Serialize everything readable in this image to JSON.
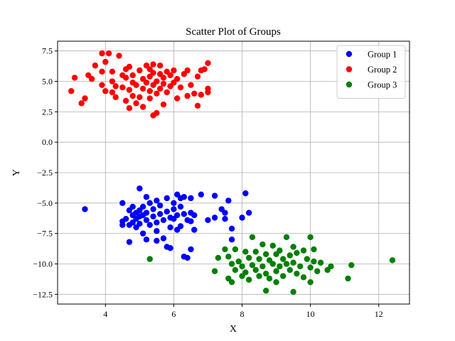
{
  "chart_data": {
    "type": "scatter",
    "title": "Scatter Plot of Groups",
    "xlabel": "X",
    "ylabel": "Y",
    "xlim": [
      2.6,
      12.9
    ],
    "ylim": [
      -13.3,
      8.3
    ],
    "xticks": [
      4,
      6,
      8,
      10,
      12
    ],
    "yticks": [
      7.5,
      5.0,
      2.5,
      0.0,
      -2.5,
      -5.0,
      -7.5,
      -10.0,
      -12.5
    ],
    "xtick_labels": [
      "4",
      "6",
      "8",
      "10",
      "12"
    ],
    "ytick_labels": [
      "7.5",
      "5.0",
      "2.5",
      "0.0",
      "−2.5",
      "−5.0",
      "−7.5",
      "−10.0",
      "−12.5"
    ],
    "grid": true,
    "legend_position": "top-right",
    "series": [
      {
        "name": "Group 1",
        "color": "#0000ff",
        "points": [
          [
            3.4,
            -5.5
          ],
          [
            4.5,
            -5.0
          ],
          [
            4.5,
            -6.5
          ],
          [
            4.5,
            -6.8
          ],
          [
            4.6,
            -6.3
          ],
          [
            4.7,
            -5.6
          ],
          [
            4.7,
            -6.8
          ],
          [
            4.7,
            -8.2
          ],
          [
            4.8,
            -5.3
          ],
          [
            4.8,
            -6.0
          ],
          [
            4.8,
            -6.6
          ],
          [
            4.9,
            -5.8
          ],
          [
            4.9,
            -6.3
          ],
          [
            4.9,
            -7.0
          ],
          [
            5.0,
            -3.8
          ],
          [
            5.0,
            -5.6
          ],
          [
            5.0,
            -6.1
          ],
          [
            5.0,
            -6.7
          ],
          [
            5.1,
            -5.3
          ],
          [
            5.1,
            -6.0
          ],
          [
            5.1,
            -7.5
          ],
          [
            5.2,
            -4.5
          ],
          [
            5.2,
            -5.8
          ],
          [
            5.2,
            -6.4
          ],
          [
            5.2,
            -8.0
          ],
          [
            5.3,
            -5.0
          ],
          [
            5.3,
            -6.8
          ],
          [
            5.4,
            -5.5
          ],
          [
            5.4,
            -6.1
          ],
          [
            5.5,
            -4.8
          ],
          [
            5.5,
            -6.6
          ],
          [
            5.5,
            -7.3
          ],
          [
            5.5,
            -8.1
          ],
          [
            5.6,
            -5.2
          ],
          [
            5.6,
            -5.9
          ],
          [
            5.7,
            -6.4
          ],
          [
            5.7,
            -7.9
          ],
          [
            5.8,
            -4.6
          ],
          [
            5.8,
            -5.7
          ],
          [
            5.8,
            -8.6
          ],
          [
            5.9,
            -6.2
          ],
          [
            5.9,
            -7.0
          ],
          [
            5.9,
            -8.7
          ],
          [
            6.0,
            -5.0
          ],
          [
            6.0,
            -5.5
          ],
          [
            6.0,
            -6.3
          ],
          [
            6.1,
            -4.3
          ],
          [
            6.1,
            -6.0
          ],
          [
            6.1,
            -7.2
          ],
          [
            6.2,
            -4.6
          ],
          [
            6.2,
            -5.3
          ],
          [
            6.2,
            -6.9
          ],
          [
            6.3,
            -4.5
          ],
          [
            6.3,
            -5.9
          ],
          [
            6.3,
            -9.4
          ],
          [
            6.4,
            -6.4
          ],
          [
            6.4,
            -9.5
          ],
          [
            6.5,
            -4.6
          ],
          [
            6.5,
            -5.8
          ],
          [
            6.5,
            -6.5
          ],
          [
            6.5,
            -8.8
          ],
          [
            6.6,
            -6.0
          ],
          [
            6.6,
            -7.2
          ],
          [
            6.8,
            -4.3
          ],
          [
            7.0,
            -6.4
          ],
          [
            7.2,
            -4.4
          ],
          [
            7.2,
            -6.2
          ],
          [
            7.4,
            -5.5
          ],
          [
            7.5,
            -5.8
          ],
          [
            7.5,
            -6.3
          ],
          [
            7.6,
            -4.8
          ],
          [
            7.7,
            -7.1
          ],
          [
            7.7,
            -8.0
          ],
          [
            8.0,
            -6.2
          ],
          [
            8.1,
            -4.2
          ],
          [
            8.2,
            -5.8
          ]
        ]
      },
      {
        "name": "Group 2",
        "color": "#ff0000",
        "points": [
          [
            3.0,
            4.2
          ],
          [
            3.1,
            5.3
          ],
          [
            3.3,
            3.2
          ],
          [
            3.4,
            3.6
          ],
          [
            3.5,
            5.5
          ],
          [
            3.6,
            5.2
          ],
          [
            3.7,
            6.3
          ],
          [
            3.9,
            4.7
          ],
          [
            3.9,
            5.8
          ],
          [
            3.9,
            7.3
          ],
          [
            4.0,
            4.2
          ],
          [
            4.0,
            6.6
          ],
          [
            4.1,
            7.3
          ],
          [
            4.2,
            4.1
          ],
          [
            4.2,
            5.0
          ],
          [
            4.2,
            5.8
          ],
          [
            4.3,
            3.7
          ],
          [
            4.3,
            4.6
          ],
          [
            4.4,
            7.1
          ],
          [
            4.5,
            4.5
          ],
          [
            4.5,
            5.5
          ],
          [
            4.6,
            3.4
          ],
          [
            4.6,
            5.3
          ],
          [
            4.6,
            6.0
          ],
          [
            4.7,
            2.8
          ],
          [
            4.7,
            4.3
          ],
          [
            4.7,
            6.2
          ],
          [
            4.8,
            3.8
          ],
          [
            4.8,
            4.9
          ],
          [
            4.8,
            5.5
          ],
          [
            4.9,
            3.2
          ],
          [
            4.9,
            4.7
          ],
          [
            5.0,
            3.7
          ],
          [
            5.0,
            5.9
          ],
          [
            5.1,
            2.9
          ],
          [
            5.1,
            4.4
          ],
          [
            5.1,
            5.2
          ],
          [
            5.2,
            6.3
          ],
          [
            5.2,
            4.9
          ],
          [
            5.3,
            3.6
          ],
          [
            5.3,
            4.2
          ],
          [
            5.3,
            5.4
          ],
          [
            5.3,
            6.0
          ],
          [
            5.4,
            2.2
          ],
          [
            5.4,
            4.7
          ],
          [
            5.4,
            5.7
          ],
          [
            5.4,
            6.4
          ],
          [
            5.5,
            2.4
          ],
          [
            5.5,
            4.0
          ],
          [
            5.5,
            5.0
          ],
          [
            5.6,
            4.4
          ],
          [
            5.6,
            5.6
          ],
          [
            5.6,
            6.3
          ],
          [
            5.7,
            3.1
          ],
          [
            5.7,
            4.8
          ],
          [
            5.7,
            5.3
          ],
          [
            5.8,
            4.1
          ],
          [
            5.8,
            5.8
          ],
          [
            5.9,
            4.6
          ],
          [
            5.9,
            5.5
          ],
          [
            6.0,
            4.9
          ],
          [
            6.0,
            5.9
          ],
          [
            6.1,
            3.6
          ],
          [
            6.1,
            5.2
          ],
          [
            6.2,
            4.5
          ],
          [
            6.3,
            5.6
          ],
          [
            6.4,
            3.8
          ],
          [
            6.4,
            5.9
          ],
          [
            6.5,
            4.7
          ],
          [
            6.6,
            4.0
          ],
          [
            6.7,
            3.0
          ],
          [
            6.7,
            5.4
          ],
          [
            6.8,
            3.9
          ],
          [
            6.8,
            5.9
          ],
          [
            6.9,
            6.0
          ],
          [
            7.0,
            4.1
          ],
          [
            7.0,
            4.4
          ],
          [
            7.0,
            6.5
          ]
        ]
      },
      {
        "name": "Group 3",
        "color": "#008000",
        "points": [
          [
            5.3,
            -9.6
          ],
          [
            7.2,
            -10.6
          ],
          [
            7.3,
            -9.5
          ],
          [
            7.5,
            -8.8
          ],
          [
            7.6,
            -11.2
          ],
          [
            7.6,
            -9.4
          ],
          [
            7.7,
            -10.0
          ],
          [
            7.7,
            -11.5
          ],
          [
            7.8,
            -8.8
          ],
          [
            7.8,
            -10.5
          ],
          [
            7.9,
            -9.8
          ],
          [
            8.0,
            -10.2
          ],
          [
            8.0,
            -11.0
          ],
          [
            8.1,
            -9.0
          ],
          [
            8.1,
            -10.7
          ],
          [
            8.2,
            -9.5
          ],
          [
            8.2,
            -11.3
          ],
          [
            8.3,
            -7.8
          ],
          [
            8.3,
            -10.1
          ],
          [
            8.4,
            -9.0
          ],
          [
            8.4,
            -10.5
          ],
          [
            8.5,
            -9.6
          ],
          [
            8.5,
            -11.0
          ],
          [
            8.6,
            -8.4
          ],
          [
            8.6,
            -10.2
          ],
          [
            8.7,
            -9.2
          ],
          [
            8.7,
            -10.8
          ],
          [
            8.7,
            -12.2
          ],
          [
            8.8,
            -9.7
          ],
          [
            8.8,
            -11.2
          ],
          [
            8.9,
            -8.5
          ],
          [
            8.9,
            -10.0
          ],
          [
            9.0,
            -9.2
          ],
          [
            9.0,
            -10.6
          ],
          [
            9.0,
            -11.5
          ],
          [
            9.1,
            -8.9
          ],
          [
            9.1,
            -10.2
          ],
          [
            9.2,
            -9.6
          ],
          [
            9.2,
            -11.0
          ],
          [
            9.3,
            -7.8
          ],
          [
            9.3,
            -10.0
          ],
          [
            9.4,
            -9.3
          ],
          [
            9.4,
            -10.5
          ],
          [
            9.5,
            -8.6
          ],
          [
            9.5,
            -9.9
          ],
          [
            9.5,
            -12.3
          ],
          [
            9.6,
            -9.1
          ],
          [
            9.6,
            -10.8
          ],
          [
            9.7,
            -10.2
          ],
          [
            9.8,
            -8.9
          ],
          [
            9.8,
            -11.1
          ],
          [
            9.9,
            -9.6
          ],
          [
            10.0,
            -7.8
          ],
          [
            10.0,
            -10.3
          ],
          [
            10.0,
            -11.5
          ],
          [
            10.1,
            -8.8
          ],
          [
            10.1,
            -9.8
          ],
          [
            10.2,
            -10.6
          ],
          [
            10.3,
            -9.9
          ],
          [
            10.5,
            -10.5
          ],
          [
            10.6,
            -10.2
          ],
          [
            11.1,
            -11.2
          ],
          [
            11.2,
            -10.1
          ],
          [
            12.4,
            -9.7
          ]
        ]
      }
    ]
  }
}
